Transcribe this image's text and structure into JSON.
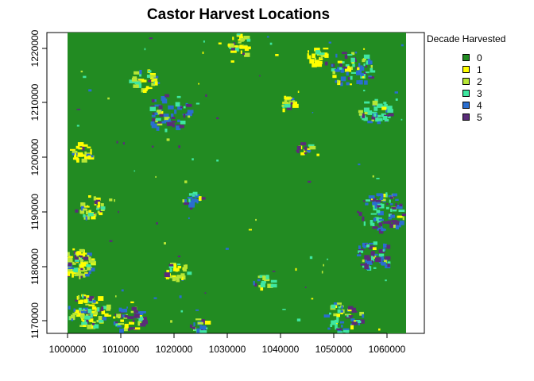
{
  "title": "Castor Harvest Locations",
  "legend": {
    "title": "Decade Harvested",
    "items": [
      {
        "label": "0",
        "color": "#228b22"
      },
      {
        "label": "1",
        "color": "#ffff00"
      },
      {
        "label": "2",
        "color": "#b7e635"
      },
      {
        "label": "3",
        "color": "#3fe7a1"
      },
      {
        "label": "4",
        "color": "#2a6ecf"
      },
      {
        "label": "5",
        "color": "#5a2c79"
      }
    ]
  },
  "axes": {
    "x_ticks": [
      "1000000",
      "1010000",
      "1020000",
      "1030000",
      "1040000",
      "1050000",
      "1060000"
    ],
    "y_ticks": [
      "1170000",
      "1180000",
      "1190000",
      "1200000",
      "1210000",
      "1220000"
    ]
  }
}
